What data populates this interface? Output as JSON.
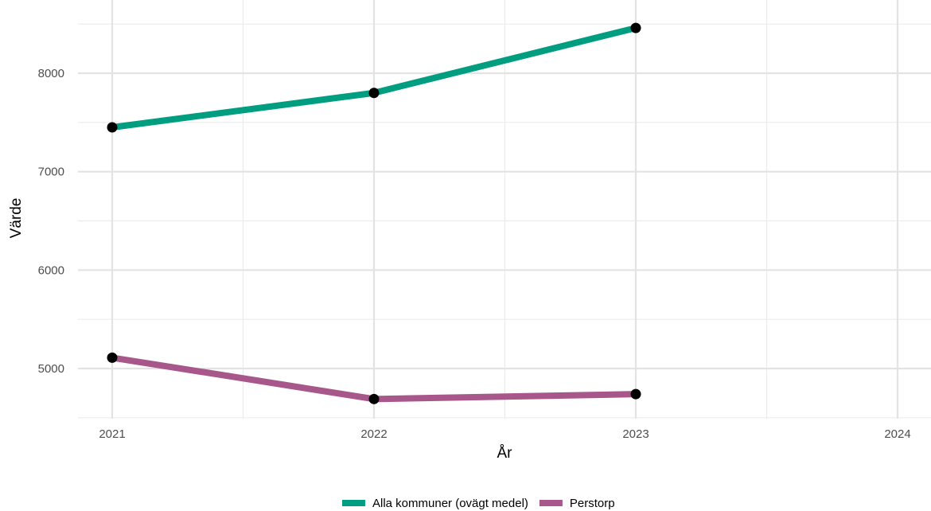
{
  "chart_data": {
    "type": "line",
    "title": "",
    "xlabel": "År",
    "ylabel": "Värde",
    "x": [
      2021,
      2022,
      2023
    ],
    "xlim": [
      2021,
      2024
    ],
    "ylim": [
      4500,
      8500
    ],
    "x_ticks": [
      "2021",
      "2022",
      "2023",
      "2024"
    ],
    "y_ticks": [
      "5000",
      "6000",
      "7000",
      "8000"
    ],
    "grid": true,
    "legend_position": "bottom",
    "series": [
      {
        "name": "Alla kommuner (ovägt medel)",
        "color": "#009E80",
        "values": [
          7450,
          7800,
          8460
        ]
      },
      {
        "name": "Perstorp",
        "color": "#A8578A",
        "values": [
          5110,
          4690,
          4740
        ]
      }
    ]
  }
}
